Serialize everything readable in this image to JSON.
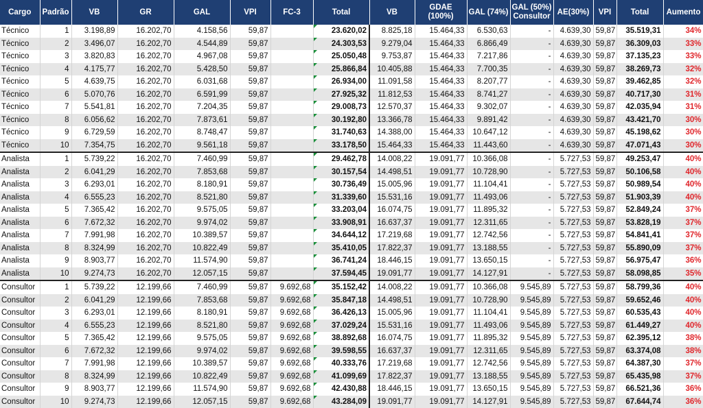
{
  "headers": [
    "Cargo",
    "Padrão",
    "VB",
    "GR",
    "GAL",
    "VPI",
    "FC-3",
    "Total",
    "VB",
    "GDAE (100%)",
    "GAL (74%)",
    "GAL (50%) Consultor",
    "AE(30%)",
    "VPI",
    "Total",
    "Aumento"
  ],
  "rows": [
    [
      "Técnico",
      "1",
      "3.198,89",
      "16.202,70",
      "4.158,56",
      "59,87",
      "",
      "23.620,02",
      "8.825,18",
      "15.464,33",
      "6.530,63",
      "-",
      "4.639,30",
      "59,87",
      "35.519,31",
      "34%"
    ],
    [
      "Técnico",
      "2",
      "3.496,07",
      "16.202,70",
      "4.544,89",
      "59,87",
      "",
      "24.303,53",
      "9.279,04",
      "15.464,33",
      "6.866,49",
      "-",
      "4.639,30",
      "59,87",
      "36.309,03",
      "33%"
    ],
    [
      "Técnico",
      "3",
      "3.820,83",
      "16.202,70",
      "4.967,08",
      "59,87",
      "",
      "25.050,48",
      "9.753,87",
      "15.464,33",
      "7.217,86",
      "-",
      "4.639,30",
      "59,87",
      "37.135,23",
      "33%"
    ],
    [
      "Técnico",
      "4",
      "4.175,77",
      "16.202,70",
      "5.428,50",
      "59,87",
      "",
      "25.866,84",
      "10.405,88",
      "15.464,33",
      "7.700,35",
      "-",
      "4.639,30",
      "59,87",
      "38.269,73",
      "32%"
    ],
    [
      "Técnico",
      "5",
      "4.639,75",
      "16.202,70",
      "6.031,68",
      "59,87",
      "",
      "26.934,00",
      "11.091,58",
      "15.464,33",
      "8.207,77",
      "-",
      "4.639,30",
      "59,87",
      "39.462,85",
      "32%"
    ],
    [
      "Técnico",
      "6",
      "5.070,76",
      "16.202,70",
      "6.591,99",
      "59,87",
      "",
      "27.925,32",
      "11.812,53",
      "15.464,33",
      "8.741,27",
      "-",
      "4.639,30",
      "59,87",
      "40.717,30",
      "31%"
    ],
    [
      "Técnico",
      "7",
      "5.541,81",
      "16.202,70",
      "7.204,35",
      "59,87",
      "",
      "29.008,73",
      "12.570,37",
      "15.464,33",
      "9.302,07",
      "-",
      "4.639,30",
      "59,87",
      "42.035,94",
      "31%"
    ],
    [
      "Técnico",
      "8",
      "6.056,62",
      "16.202,70",
      "7.873,61",
      "59,87",
      "",
      "30.192,80",
      "13.366,78",
      "15.464,33",
      "9.891,42",
      "-",
      "4.639,30",
      "59,87",
      "43.421,70",
      "30%"
    ],
    [
      "Técnico",
      "9",
      "6.729,59",
      "16.202,70",
      "8.748,47",
      "59,87",
      "",
      "31.740,63",
      "14.388,00",
      "15.464,33",
      "10.647,12",
      "-",
      "4.639,30",
      "59,87",
      "45.198,62",
      "30%"
    ],
    [
      "Técnico",
      "10",
      "7.354,75",
      "16.202,70",
      "9.561,18",
      "59,87",
      "",
      "33.178,50",
      "15.464,33",
      "15.464,33",
      "11.443,60",
      "-",
      "4.639,30",
      "59,87",
      "47.071,43",
      "30%"
    ],
    [
      "Analista",
      "1",
      "5.739,22",
      "16.202,70",
      "7.460,99",
      "59,87",
      "",
      "29.462,78",
      "14.008,22",
      "19.091,77",
      "10.366,08",
      "-",
      "5.727,53",
      "59,87",
      "49.253,47",
      "40%"
    ],
    [
      "Analista",
      "2",
      "6.041,29",
      "16.202,70",
      "7.853,68",
      "59,87",
      "",
      "30.157,54",
      "14.498,51",
      "19.091,77",
      "10.728,90",
      "-",
      "5.727,53",
      "59,87",
      "50.106,58",
      "40%"
    ],
    [
      "Analista",
      "3",
      "6.293,01",
      "16.202,70",
      "8.180,91",
      "59,87",
      "",
      "30.736,49",
      "15.005,96",
      "19.091,77",
      "11.104,41",
      "-",
      "5.727,53",
      "59,87",
      "50.989,54",
      "40%"
    ],
    [
      "Analista",
      "4",
      "6.555,23",
      "16.202,70",
      "8.521,80",
      "59,87",
      "",
      "31.339,60",
      "15.531,16",
      "19.091,77",
      "11.493,06",
      "-",
      "5.727,53",
      "59,87",
      "51.903,39",
      "40%"
    ],
    [
      "Analista",
      "5",
      "7.365,42",
      "16.202,70",
      "9.575,05",
      "59,87",
      "",
      "33.203,04",
      "16.074,75",
      "19.091,77",
      "11.895,32",
      "-",
      "5.727,53",
      "59,87",
      "52.849,24",
      "37%"
    ],
    [
      "Analista",
      "6",
      "7.672,32",
      "16.202,70",
      "9.974,02",
      "59,87",
      "",
      "33.908,91",
      "16.637,37",
      "19.091,77",
      "12.311,65",
      "-",
      "5.727,53",
      "59,87",
      "53.828,19",
      "37%"
    ],
    [
      "Analista",
      "7",
      "7.991,98",
      "16.202,70",
      "10.389,57",
      "59,87",
      "",
      "34.644,12",
      "17.219,68",
      "19.091,77",
      "12.742,56",
      "-",
      "5.727,53",
      "59,87",
      "54.841,41",
      "37%"
    ],
    [
      "Analista",
      "8",
      "8.324,99",
      "16.202,70",
      "10.822,49",
      "59,87",
      "",
      "35.410,05",
      "17.822,37",
      "19.091,77",
      "13.188,55",
      "-",
      "5.727,53",
      "59,87",
      "55.890,09",
      "37%"
    ],
    [
      "Analista",
      "9",
      "8.903,77",
      "16.202,70",
      "11.574,90",
      "59,87",
      "",
      "36.741,24",
      "18.446,15",
      "19.091,77",
      "13.650,15",
      "-",
      "5.727,53",
      "59,87",
      "56.975,47",
      "36%"
    ],
    [
      "Analista",
      "10",
      "9.274,73",
      "16.202,70",
      "12.057,15",
      "59,87",
      "",
      "37.594,45",
      "19.091,77",
      "19.091,77",
      "14.127,91",
      "-",
      "5.727,53",
      "59,87",
      "58.098,85",
      "35%"
    ],
    [
      "Consultor",
      "1",
      "5.739,22",
      "12.199,66",
      "7.460,99",
      "59,87",
      "9.692,68",
      "35.152,42",
      "14.008,22",
      "19.091,77",
      "10.366,08",
      "9.545,89",
      "5.727,53",
      "59,87",
      "58.799,36",
      "40%"
    ],
    [
      "Consultor",
      "2",
      "6.041,29",
      "12.199,66",
      "7.853,68",
      "59,87",
      "9.692,68",
      "35.847,18",
      "14.498,51",
      "19.091,77",
      "10.728,90",
      "9.545,89",
      "5.727,53",
      "59,87",
      "59.652,46",
      "40%"
    ],
    [
      "Consultor",
      "3",
      "6.293,01",
      "12.199,66",
      "8.180,91",
      "59,87",
      "9.692,68",
      "36.426,13",
      "15.005,96",
      "19.091,77",
      "11.104,41",
      "9.545,89",
      "5.727,53",
      "59,87",
      "60.535,43",
      "40%"
    ],
    [
      "Consultor",
      "4",
      "6.555,23",
      "12.199,66",
      "8.521,80",
      "59,87",
      "9.692,68",
      "37.029,24",
      "15.531,16",
      "19.091,77",
      "11.493,06",
      "9.545,89",
      "5.727,53",
      "59,87",
      "61.449,27",
      "40%"
    ],
    [
      "Consultor",
      "5",
      "7.365,42",
      "12.199,66",
      "9.575,05",
      "59,87",
      "9.692,68",
      "38.892,68",
      "16.074,75",
      "19.091,77",
      "11.895,32",
      "9.545,89",
      "5.727,53",
      "59,87",
      "62.395,12",
      "38%"
    ],
    [
      "Consultor",
      "6",
      "7.672,32",
      "12.199,66",
      "9.974,02",
      "59,87",
      "9.692,68",
      "39.598,55",
      "16.637,37",
      "19.091,77",
      "12.311,65",
      "9.545,89",
      "5.727,53",
      "59,87",
      "63.374,08",
      "38%"
    ],
    [
      "Consultor",
      "7",
      "7.991,98",
      "12.199,66",
      "10.389,57",
      "59,87",
      "9.692,68",
      "40.333,76",
      "17.219,68",
      "19.091,77",
      "12.742,56",
      "9.545,89",
      "5.727,53",
      "59,87",
      "64.387,30",
      "37%"
    ],
    [
      "Consultor",
      "8",
      "8.324,99",
      "12.199,66",
      "10.822,49",
      "59,87",
      "9.692,68",
      "41.099,69",
      "17.822,37",
      "19.091,77",
      "13.188,55",
      "9.545,89",
      "5.727,53",
      "59,87",
      "65.435,98",
      "37%"
    ],
    [
      "Consultor",
      "9",
      "8.903,77",
      "12.199,66",
      "11.574,90",
      "59,87",
      "9.692,68",
      "42.430,88",
      "18.446,15",
      "19.091,77",
      "13.650,15",
      "9.545,89",
      "5.727,53",
      "59,87",
      "66.521,36",
      "36%"
    ],
    [
      "Consultor",
      "10",
      "9.274,73",
      "12.199,66",
      "12.057,15",
      "59,87",
      "9.692,68",
      "43.284,09",
      "19.091,77",
      "19.091,77",
      "14.127,91",
      "9.545,89",
      "5.727,53",
      "59,87",
      "67.644,74",
      "36%"
    ]
  ],
  "colors": {
    "header_bg": "#1f3f73",
    "header_text": "#ffffff",
    "stripe": "#e6e6e6",
    "increase_text": "#e0262b",
    "corner_marker": "#1a8f3a"
  }
}
